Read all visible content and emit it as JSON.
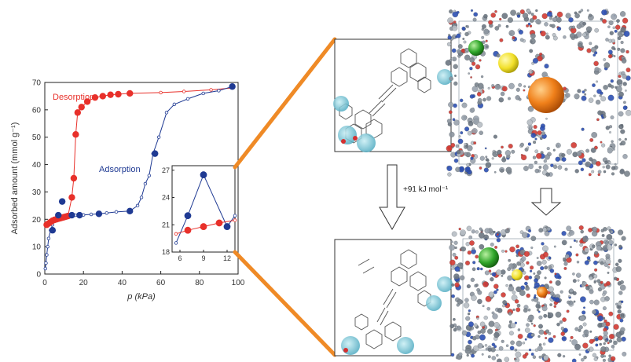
{
  "chart_data": {
    "type": "line",
    "xlabel": "p (kPa)",
    "ylabel": "Adsorbed amount (mmol g⁻¹)",
    "xlim": [
      0,
      100
    ],
    "ylim": [
      0,
      70
    ],
    "x_ticks": [
      0,
      20,
      40,
      60,
      80,
      100
    ],
    "y_ticks": [
      0,
      10,
      20,
      30,
      40,
      50,
      60,
      70
    ],
    "grid": false,
    "colors": {
      "desorption": "#e8302a",
      "adsorption": "#1f3a93"
    },
    "series": [
      {
        "name": "Desorption",
        "x": [
          1,
          2,
          3,
          4,
          5,
          6,
          7,
          8,
          9,
          10,
          11,
          12,
          14,
          15,
          16,
          17,
          19,
          22,
          26,
          30,
          34,
          38,
          44,
          60,
          72,
          86,
          97
        ],
        "y": [
          18,
          18.5,
          19,
          19.5,
          19.8,
          20,
          20.2,
          20.4,
          20.6,
          20.8,
          21,
          21.2,
          28,
          35,
          51,
          59,
          61,
          63,
          64.5,
          65,
          65.5,
          65.7,
          66,
          66.3,
          66.7,
          67.3,
          68
        ]
      },
      {
        "name": "Adsorption",
        "x": [
          0.3,
          0.6,
          1,
          1.5,
          2,
          3,
          4,
          5,
          6,
          7,
          9,
          11,
          13,
          16,
          20,
          24,
          28,
          32,
          37,
          44,
          48,
          50,
          52,
          54,
          56,
          59,
          63,
          67,
          74,
          82,
          90,
          97
        ],
        "y": [
          2,
          4,
          7,
          10,
          13,
          16,
          18,
          19.5,
          20.5,
          21,
          21.2,
          21.3,
          21.4,
          21.5,
          21.6,
          21.8,
          22,
          22.3,
          22.7,
          23,
          25,
          28,
          33,
          36,
          44,
          50,
          59,
          62,
          64,
          66,
          67,
          68.5
        ]
      }
    ],
    "adsorption_markers": {
      "x": [
        4,
        7,
        9,
        14,
        18,
        28,
        44,
        57,
        97
      ],
      "y": [
        16,
        21.5,
        26.5,
        21.5,
        21.5,
        22,
        23,
        44,
        68.5
      ]
    },
    "desorption_markers": {
      "x": [
        1,
        2,
        3,
        4,
        5,
        6,
        7,
        8,
        9,
        10,
        11,
        12,
        14,
        15,
        16,
        17,
        19,
        22,
        26,
        30,
        34,
        38,
        44
      ],
      "y": [
        18,
        18.5,
        19,
        19.5,
        19.8,
        20,
        20.2,
        20.4,
        20.6,
        20.8,
        21,
        21.2,
        28,
        35,
        51,
        59,
        61,
        63,
        64.5,
        65,
        65.5,
        65.7,
        66
      ]
    },
    "inset": {
      "xlim": [
        5,
        13
      ],
      "ylim": [
        18,
        27.5
      ],
      "x_ticks": [
        6,
        9,
        12
      ],
      "y_ticks": [
        18,
        21,
        24,
        27
      ],
      "adsorption": {
        "x": [
          5.5,
          7,
          9,
          12,
          13
        ],
        "y": [
          19,
          22,
          26.5,
          20.8,
          22
        ]
      },
      "desorption": {
        "x": [
          5.5,
          7,
          9,
          11,
          13
        ],
        "y": [
          20,
          20.4,
          20.8,
          21.2,
          21.5
        ]
      }
    }
  },
  "labels": {
    "desorption": "Desorption",
    "adsorption": "Adsorption",
    "arrow_energy": "+91 kJ mol⁻¹"
  }
}
